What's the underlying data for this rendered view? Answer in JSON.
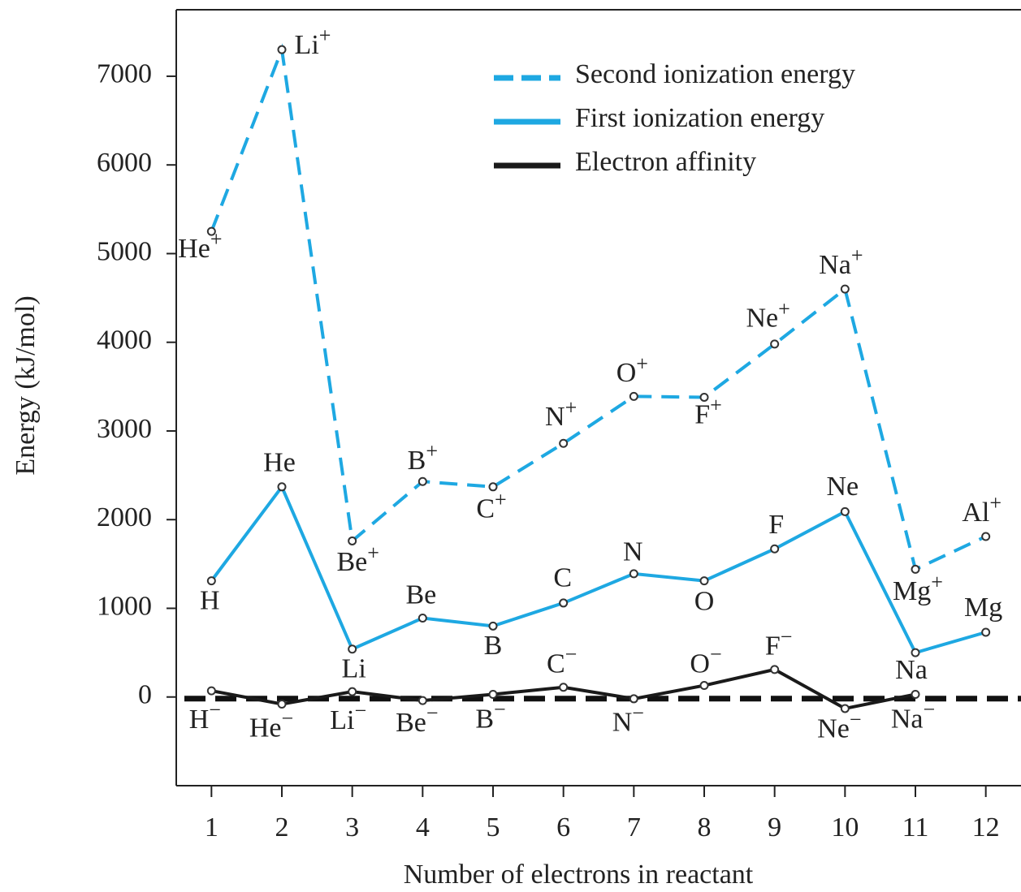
{
  "chart_data": {
    "type": "line",
    "xlabel": "Number of electrons in reactant",
    "ylabel": "Energy (kJ/mol)",
    "x": [
      1,
      2,
      3,
      4,
      5,
      6,
      7,
      8,
      9,
      10,
      11,
      12
    ],
    "xlim": [
      0.5,
      12.5
    ],
    "xticks": [
      1,
      2,
      3,
      4,
      5,
      6,
      7,
      8,
      9,
      10,
      11,
      12
    ],
    "ylim": [
      -1000,
      7750
    ],
    "yticks": [
      0,
      1000,
      2000,
      3000,
      4000,
      5000,
      6000,
      7000
    ],
    "reference_line": 0,
    "legend": "upper right",
    "series": [
      {
        "name": "Second ionization energy",
        "color": "#1ea8e2",
        "dashed": true,
        "values": [
          5250,
          7300,
          1760,
          2430,
          2370,
          2860,
          3390,
          3380,
          3980,
          4600,
          1440,
          1810
        ],
        "labels": [
          "He+",
          "Li+",
          "Be+",
          "B+",
          "C+",
          "N+",
          "O+",
          "F+",
          "Ne+",
          "Na+",
          "Mg+",
          "Al+"
        ]
      },
      {
        "name": "First ionization energy",
        "color": "#1ea8e2",
        "dashed": false,
        "values": [
          1310,
          2370,
          540,
          890,
          800,
          1060,
          1390,
          1310,
          1670,
          2090,
          500,
          730
        ],
        "labels": [
          "H",
          "He",
          "Li",
          "Be",
          "B",
          "C",
          "N",
          "O",
          "F",
          "Ne",
          "Na",
          "Mg"
        ]
      },
      {
        "name": "Electron affinity",
        "color": "#1a1a1a",
        "dashed": false,
        "values": [
          70,
          -80,
          60,
          -40,
          30,
          110,
          -20,
          130,
          310,
          -130,
          30,
          null
        ],
        "labels": [
          "H−",
          "He−",
          "Li−",
          "Be−",
          "B−",
          "C−",
          "N−",
          "O−",
          "F−",
          "Ne−",
          "Na−",
          null
        ]
      }
    ]
  }
}
